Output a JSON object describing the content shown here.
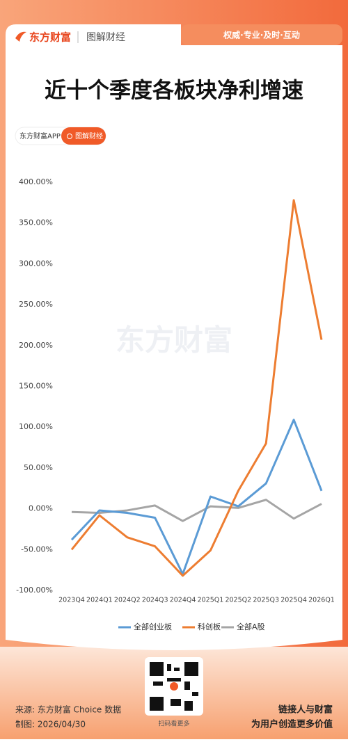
{
  "header": {
    "brand": "东方财富",
    "section": "图解财经",
    "slogan": "权威·专业·及时·互动",
    "title": "近十个季度各板块净利增速",
    "tag_app": "东方财富APP",
    "tag_section": "图解财经",
    "watermark": "东方财富"
  },
  "chart_data": {
    "type": "line",
    "categories": [
      "2023Q4",
      "2024Q1",
      "2024Q2",
      "2024Q3",
      "2024Q4",
      "2025Q1",
      "2025Q2",
      "2025Q3",
      "2025Q4",
      "2026Q1"
    ],
    "series": [
      {
        "name": "全部创业板",
        "color": "#5b9bd5",
        "values": [
          -38,
          -2,
          -5,
          -11,
          -80,
          15,
          3,
          31,
          109,
          22
        ]
      },
      {
        "name": "科创板",
        "color": "#ed7d31",
        "values": [
          -50,
          -8,
          -35,
          -46,
          -82,
          -51,
          22,
          80,
          378,
          207
        ]
      },
      {
        "name": "全部A股",
        "color": "#a5a5a5",
        "values": [
          -4,
          -5,
          -2,
          4,
          -15,
          3,
          1,
          11,
          -12,
          6
        ]
      }
    ],
    "ylim": [
      -100,
      400
    ],
    "yticks": [
      {
        "value": -100,
        "label": "-100.00%"
      },
      {
        "value": -50,
        "label": "-50.00%"
      },
      {
        "value": 0,
        "label": "0.00%"
      },
      {
        "value": 50,
        "label": "50.00%"
      },
      {
        "value": 100,
        "label": "100.00%"
      },
      {
        "value": 150,
        "label": "150.00%"
      },
      {
        "value": 200,
        "label": "200.00%"
      },
      {
        "value": 250,
        "label": "250.00%"
      },
      {
        "value": 300,
        "label": "300.00%"
      },
      {
        "value": 350,
        "label": "350.00%"
      },
      {
        "value": 400,
        "label": "400.00%"
      }
    ],
    "grid": false,
    "legend": "bottom"
  },
  "footer": {
    "source": "来源: 东方财富 Choice 数据",
    "made": "制图: 2026/04/30",
    "qr_caption": "扫码看更多",
    "motto1": "链接人与财富",
    "motto2": "为用户创造更多价值"
  }
}
